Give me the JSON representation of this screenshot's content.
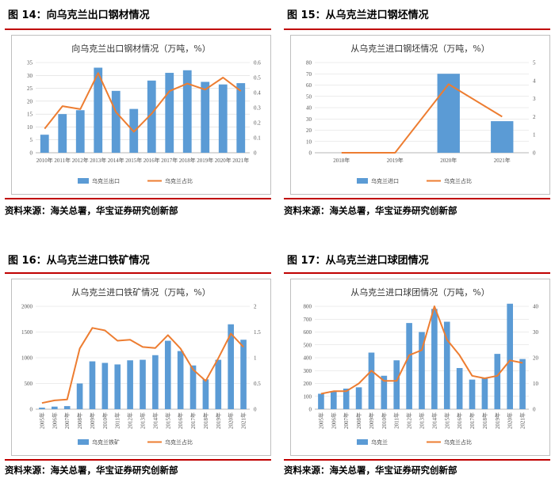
{
  "colors": {
    "bar": "#5b9bd5",
    "line": "#ed7d31",
    "accent": "#c00000",
    "grid": "#d9d9d9"
  },
  "source_text": "资料来源：海关总署，华宝证券研究创新部",
  "figures": [
    {
      "caption": "图 14：向乌克兰出口钢材情况"
    },
    {
      "caption": "图 15：从乌克兰进口钢坯情况"
    },
    {
      "caption": "图 16：从乌克兰进口铁矿情况"
    },
    {
      "caption": "图 17：从乌克兰进口球团情况"
    }
  ],
  "chart_data": [
    {
      "type": "bar",
      "title": "向乌克兰出口钢材情况（万吨，%）",
      "categories": [
        "2010年",
        "2011年",
        "2012年",
        "2013年",
        "2014年",
        "2015年",
        "2016年",
        "2017年",
        "2018年",
        "2019年",
        "2020年",
        "2021年"
      ],
      "series": [
        {
          "name": "乌克兰出口",
          "type": "bar",
          "axis": "left",
          "values": [
            7,
            15,
            16.5,
            33,
            24,
            17,
            28,
            31,
            32,
            27.5,
            26.5,
            27
          ]
        },
        {
          "name": "乌克兰占比",
          "type": "line",
          "axis": "right",
          "values": [
            0.16,
            0.31,
            0.29,
            0.53,
            0.27,
            0.14,
            0.26,
            0.41,
            0.46,
            0.42,
            0.5,
            0.41
          ]
        }
      ],
      "ylim": [
        0,
        35
      ],
      "yticks": [
        0,
        5,
        10,
        15,
        20,
        25,
        30,
        35
      ],
      "y2lim": [
        0,
        0.6
      ],
      "y2ticks": [
        "0",
        "0.1",
        "0.2",
        "0.3",
        "0.4",
        "0.5",
        "0.6"
      ],
      "legend_position": "bottom"
    },
    {
      "type": "bar",
      "title": "从乌克兰进口钢坯情况（万吨，%）",
      "categories": [
        "2018年",
        "2019年",
        "2020年",
        "2021年"
      ],
      "series": [
        {
          "name": "乌克兰进口",
          "type": "bar",
          "axis": "left",
          "values": [
            0,
            0,
            70,
            28
          ]
        },
        {
          "name": "乌克兰占比",
          "type": "line",
          "axis": "right",
          "values": [
            0,
            0,
            3.8,
            2.0
          ]
        }
      ],
      "ylim": [
        0,
        80
      ],
      "yticks": [
        0,
        10,
        20,
        30,
        40,
        50,
        60,
        70,
        80
      ],
      "y2lim": [
        0,
        5
      ],
      "y2ticks": [
        "0",
        "1",
        "2",
        "3",
        "4",
        "5"
      ],
      "legend_position": "bottom"
    },
    {
      "type": "bar",
      "title": "从乌克兰进口铁矿情况（万吨，%）",
      "categories": [
        "2005年",
        "2006年",
        "2007年",
        "2008年",
        "2009年",
        "2010年",
        "2011年",
        "2012年",
        "2013年",
        "2014年",
        "2015年",
        "2016年",
        "2017年",
        "2018年",
        "2019年",
        "2020年",
        "2021年"
      ],
      "series": [
        {
          "name": "乌克兰铁矿",
          "type": "bar",
          "axis": "left",
          "values": [
            30,
            50,
            60,
            500,
            930,
            900,
            870,
            950,
            960,
            1050,
            1330,
            1130,
            850,
            580,
            960,
            1650,
            1350
          ]
        },
        {
          "name": "乌克兰占比",
          "type": "line",
          "axis": "right",
          "values": [
            0.12,
            0.17,
            0.19,
            1.18,
            1.58,
            1.53,
            1.33,
            1.35,
            1.21,
            1.19,
            1.44,
            1.18,
            0.77,
            0.55,
            0.99,
            1.47,
            1.21
          ]
        }
      ],
      "ylim": [
        0,
        2000
      ],
      "yticks": [
        0,
        500,
        1000,
        1500,
        2000
      ],
      "y2lim": [
        0,
        2
      ],
      "y2ticks": [
        "0",
        "0.5",
        "1",
        "1.5",
        "2"
      ],
      "legend_position": "bottom"
    },
    {
      "type": "bar",
      "title": "从乌克兰进口球团情况（万吨，%）",
      "categories": [
        "2005年",
        "2006年",
        "2007年",
        "2008年",
        "2009年",
        "2010年",
        "2011年",
        "2012年",
        "2013年",
        "2014年",
        "2015年",
        "2016年",
        "2017年",
        "2018年",
        "2019年",
        "2020年",
        "2021年"
      ],
      "series": [
        {
          "name": "乌克兰",
          "type": "bar",
          "axis": "left",
          "values": [
            120,
            140,
            160,
            170,
            440,
            260,
            380,
            670,
            600,
            780,
            680,
            320,
            230,
            240,
            430,
            820,
            390
          ]
        },
        {
          "name": "乌克兰占比",
          "type": "line",
          "axis": "right",
          "values": [
            6,
            7,
            7,
            10,
            15,
            11,
            11,
            21,
            23,
            40,
            27,
            21,
            13,
            12,
            13,
            19,
            18
          ]
        }
      ],
      "ylim": [
        0,
        800
      ],
      "yticks": [
        0,
        100,
        200,
        300,
        400,
        500,
        600,
        700,
        800
      ],
      "y2lim": [
        0,
        40
      ],
      "y2ticks": [
        "0",
        "10",
        "20",
        "30",
        "40"
      ],
      "legend_position": "bottom"
    }
  ]
}
